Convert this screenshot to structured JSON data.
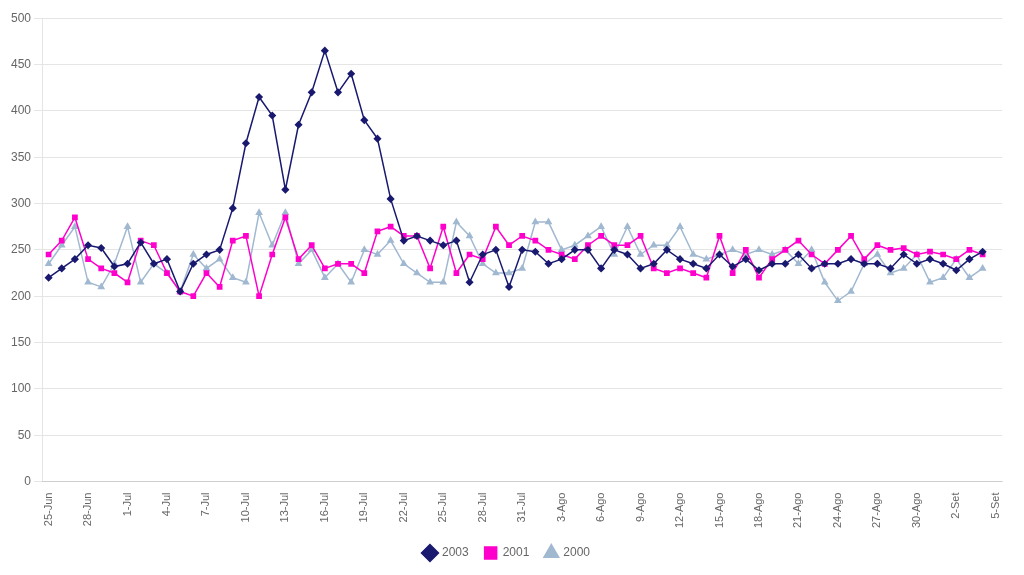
{
  "chart_data": {
    "type": "line",
    "categories": [
      "25-Jun",
      null,
      null,
      "28-Jun",
      null,
      null,
      "1-Jul",
      null,
      null,
      "4-Jul",
      null,
      null,
      "7-Jul",
      null,
      null,
      "10-Jul",
      null,
      null,
      "13-Jul",
      null,
      null,
      "16-Jul",
      null,
      null,
      "19-Jul",
      null,
      null,
      "22-Jul",
      null,
      null,
      "25-Jul",
      null,
      null,
      "28-Jul",
      null,
      null,
      "31-Jul",
      null,
      null,
      "3-Ago",
      null,
      null,
      "6-Ago",
      null,
      null,
      "9-Ago",
      null,
      null,
      "12-Ago",
      null,
      null,
      "15-Ago",
      null,
      null,
      "18-Ago",
      null,
      null,
      "21-Ago",
      null,
      null,
      "24-Ago",
      null,
      null,
      "27-Ago",
      null,
      null,
      "30-Ago",
      null,
      null,
      "2-Set",
      null,
      null,
      "5-Set"
    ],
    "series": [
      {
        "name": "2003",
        "color": "#191970",
        "marker": "diamond",
        "values": [
          220,
          230,
          240,
          255,
          252,
          232,
          235,
          258,
          235,
          240,
          205,
          235,
          245,
          250,
          295,
          365,
          415,
          395,
          315,
          385,
          420,
          465,
          420,
          440,
          390,
          370,
          305,
          260,
          265,
          260,
          255,
          260,
          215,
          245,
          250,
          210,
          250,
          248,
          235,
          240,
          250,
          250,
          230,
          250,
          245,
          230,
          235,
          250,
          240,
          235,
          230,
          245,
          232,
          240,
          228,
          235,
          235,
          245,
          230,
          235,
          235,
          240,
          235,
          235,
          230,
          245,
          235,
          240,
          235,
          228,
          240,
          248,
          null
        ]
      },
      {
        "name": "2001",
        "color": "#ff00cc",
        "marker": "square",
        "values": [
          245,
          260,
          285,
          240,
          230,
          225,
          215,
          260,
          255,
          225,
          205,
          200,
          225,
          210,
          260,
          265,
          200,
          245,
          285,
          240,
          255,
          230,
          235,
          235,
          225,
          270,
          275,
          265,
          265,
          230,
          275,
          225,
          245,
          240,
          275,
          255,
          265,
          260,
          250,
          245,
          240,
          255,
          265,
          255,
          255,
          265,
          230,
          225,
          230,
          225,
          220,
          265,
          225,
          250,
          220,
          240,
          250,
          260,
          245,
          235,
          250,
          265,
          240,
          255,
          250,
          252,
          245,
          248,
          245,
          240,
          250,
          245,
          null
        ]
      },
      {
        "name": "2000",
        "color": "#a0b8d0",
        "marker": "triangle",
        "values": [
          235,
          255,
          275,
          215,
          210,
          235,
          275,
          215,
          235,
          225,
          205,
          245,
          230,
          240,
          220,
          215,
          290,
          255,
          290,
          235,
          250,
          220,
          235,
          215,
          250,
          245,
          260,
          235,
          225,
          215,
          215,
          280,
          265,
          235,
          225,
          225,
          230,
          280,
          280,
          250,
          255,
          265,
          275,
          245,
          275,
          245,
          255,
          255,
          275,
          245,
          240,
          245,
          250,
          245,
          250,
          245,
          250,
          235,
          250,
          215,
          195,
          205,
          235,
          245,
          225,
          230,
          245,
          215,
          220,
          240,
          220,
          230,
          null
        ]
      }
    ],
    "ylim": [
      0,
      500
    ],
    "yticks": [
      0,
      50,
      100,
      150,
      200,
      250,
      300,
      350,
      400,
      450,
      500
    ],
    "grid": "y",
    "legend": "bottom"
  }
}
